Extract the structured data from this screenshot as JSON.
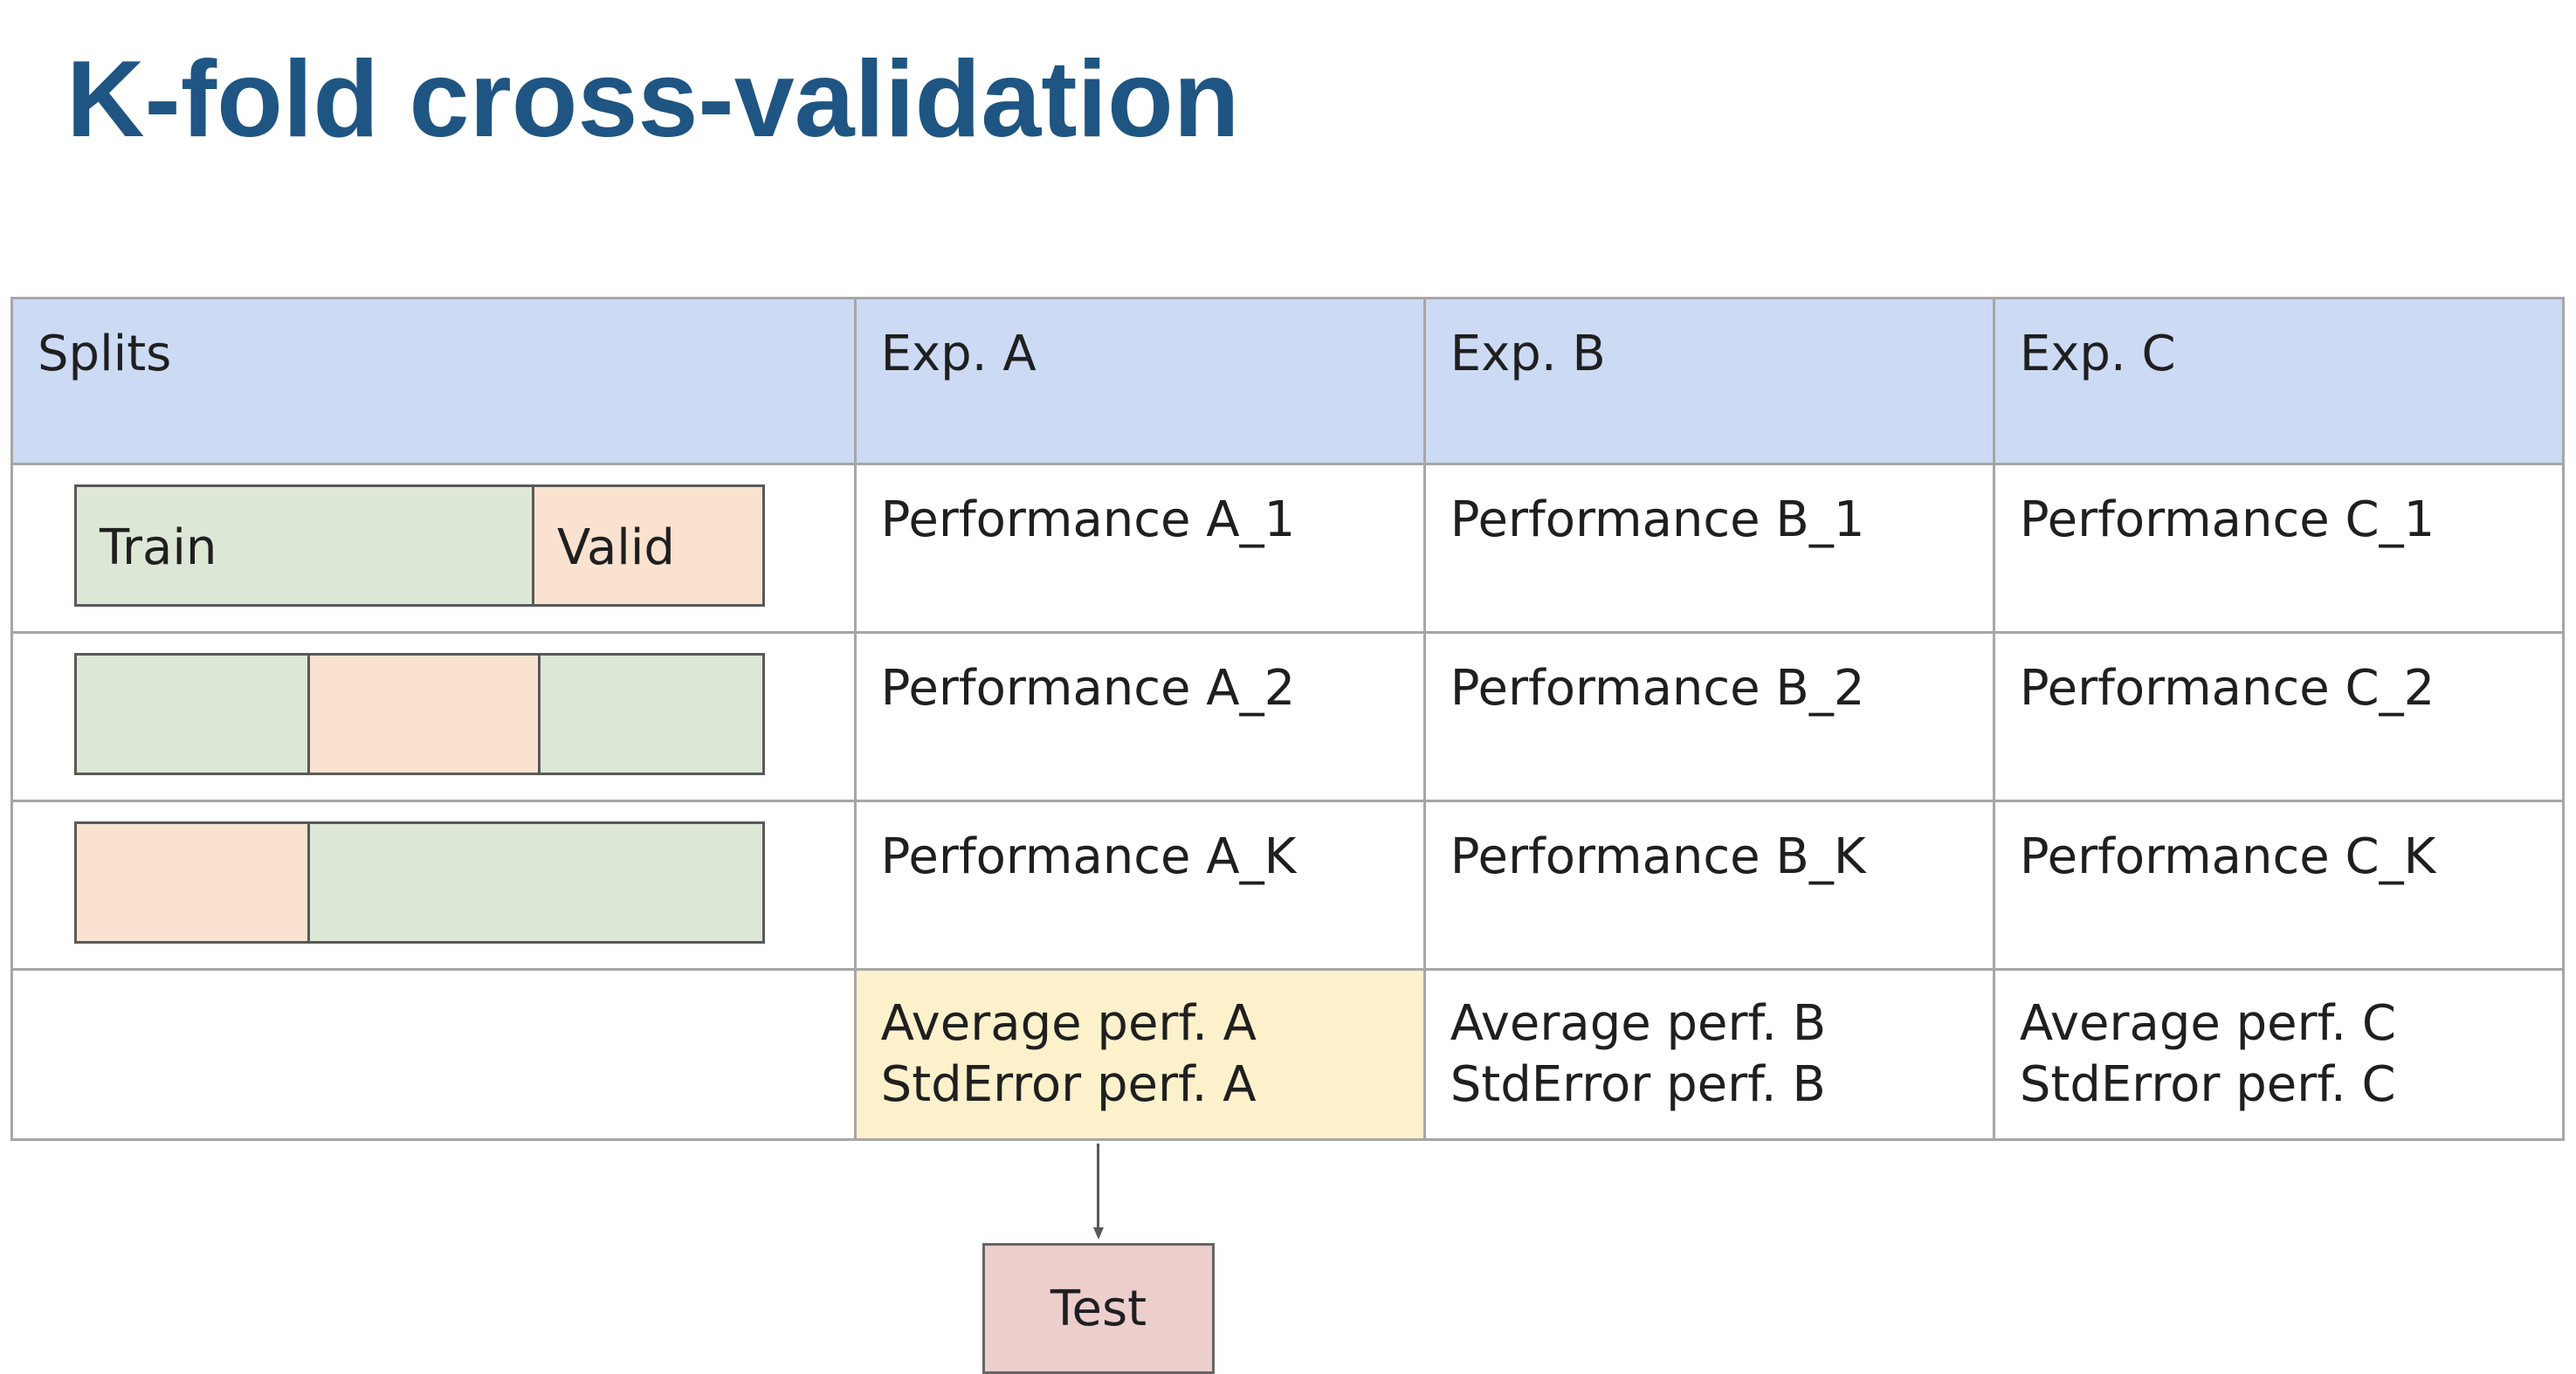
{
  "title": "K-fold cross-validation",
  "table": {
    "headers": [
      "Splits",
      "Exp. A",
      "Exp. B",
      "Exp. C"
    ],
    "rows": [
      [
        "Performance A_1",
        "Performance B_1",
        "Performance C_1"
      ],
      [
        "Performance A_2",
        "Performance B_2",
        "Performance C_2"
      ],
      [
        "Performance A_K",
        "Performance B_K",
        "Performance C_K"
      ]
    ],
    "summary": [
      {
        "average": "Average perf. A",
        "stderror": "StdError perf. A"
      },
      {
        "average": "Average perf. B",
        "stderror": "StdError perf. B"
      },
      {
        "average": "Average perf. C",
        "stderror": "StdError perf. C"
      }
    ]
  },
  "splits": {
    "train_label": "Train",
    "valid_label": "Valid"
  },
  "test_label": "Test",
  "colors": {
    "title": "#1f5582",
    "header_bg": "#ccdaf4",
    "train": "#dce8d5",
    "valid": "#f9e2cf",
    "highlight": "#fcf1cb",
    "test": "#eccecd"
  }
}
